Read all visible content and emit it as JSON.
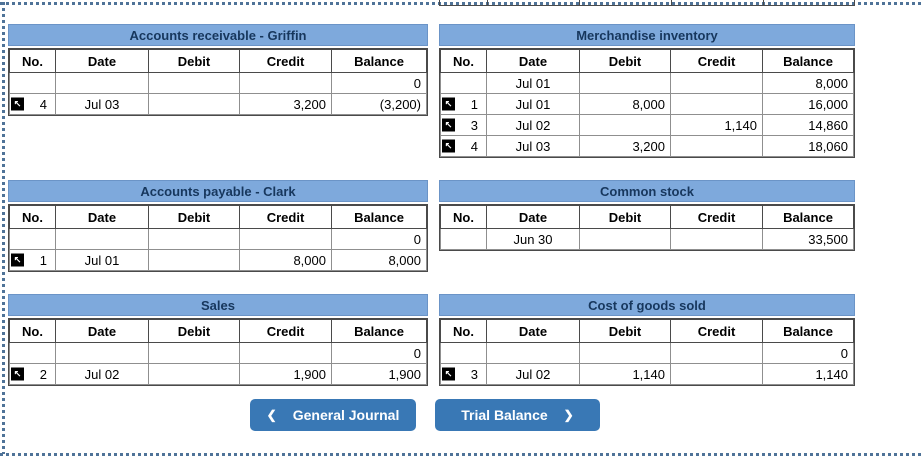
{
  "column_headers": [
    "No.",
    "Date",
    "Debit",
    "Credit",
    "Balance"
  ],
  "ledgers": [
    {
      "title": "Accounts receivable - Griffin",
      "rows": [
        {
          "link": false,
          "no": "",
          "date": "",
          "debit": "",
          "credit": "",
          "balance": "0"
        },
        {
          "link": true,
          "no": "4",
          "date": "Jul 03",
          "debit": "",
          "credit": "3,200",
          "balance": "(3,200)"
        }
      ]
    },
    {
      "title": "Merchandise inventory",
      "rows": [
        {
          "link": false,
          "no": "",
          "date": "Jul 01",
          "debit": "",
          "credit": "",
          "balance": "8,000"
        },
        {
          "link": true,
          "no": "1",
          "date": "Jul 01",
          "debit": "8,000",
          "credit": "",
          "balance": "16,000"
        },
        {
          "link": true,
          "no": "3",
          "date": "Jul 02",
          "debit": "",
          "credit": "1,140",
          "balance": "14,860"
        },
        {
          "link": true,
          "no": "4",
          "date": "Jul 03",
          "debit": "3,200",
          "credit": "",
          "balance": "18,060"
        }
      ]
    },
    {
      "title": "Accounts payable - Clark",
      "rows": [
        {
          "link": false,
          "no": "",
          "date": "",
          "debit": "",
          "credit": "",
          "balance": "0"
        },
        {
          "link": true,
          "no": "1",
          "date": "Jul 01",
          "debit": "",
          "credit": "8,000",
          "balance": "8,000"
        }
      ]
    },
    {
      "title": "Common stock",
      "rows": [
        {
          "link": false,
          "no": "",
          "date": "Jun 30",
          "debit": "",
          "credit": "",
          "balance": "33,500"
        }
      ]
    },
    {
      "title": "Sales",
      "rows": [
        {
          "link": false,
          "no": "",
          "date": "",
          "debit": "",
          "credit": "",
          "balance": "0"
        },
        {
          "link": true,
          "no": "2",
          "date": "Jul 02",
          "debit": "",
          "credit": "1,900",
          "balance": "1,900"
        }
      ]
    },
    {
      "title": "Cost of goods sold",
      "rows": [
        {
          "link": false,
          "no": "",
          "date": "",
          "debit": "",
          "credit": "",
          "balance": "0"
        },
        {
          "link": true,
          "no": "3",
          "date": "Jul 02",
          "debit": "1,140",
          "credit": "",
          "balance": "1,140"
        }
      ]
    }
  ],
  "nav": {
    "buttons": [
      {
        "label": "General Journal",
        "chevron": "left"
      },
      {
        "label": "Trial Balance",
        "chevron": "right"
      }
    ],
    "chevron_left": "❮",
    "chevron_right": "❯"
  },
  "icons": {
    "posting_link_glyph": "↖"
  },
  "colors": {
    "header_bar": "#7EA9DC",
    "title_text": "#17375D",
    "button_bg": "#3978B5",
    "dotted_border": "#4F7398",
    "grid_border_dark": "#4a4a4a",
    "grid_border_light": "#8f8f8f"
  }
}
